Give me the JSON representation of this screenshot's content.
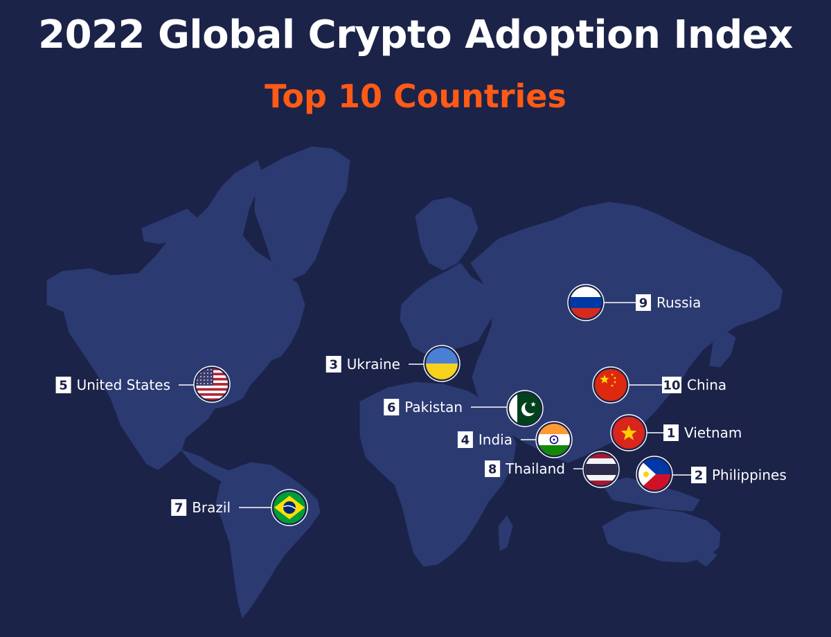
{
  "title": "2022 Global Crypto Adoption Index",
  "subtitle": "Top 10 Countries",
  "colors": {
    "background": "#1b2349",
    "land": "#2c3a72",
    "accent": "#ff5a16",
    "label": "#ffffff"
  },
  "countries": [
    {
      "rank": "1",
      "name": "Vietnam",
      "flag": "vietnam-flag-icon"
    },
    {
      "rank": "2",
      "name": "Philippines",
      "flag": "philippines-flag-icon"
    },
    {
      "rank": "3",
      "name": "Ukraine",
      "flag": "ukraine-flag-icon"
    },
    {
      "rank": "4",
      "name": "India",
      "flag": "india-flag-icon"
    },
    {
      "rank": "5",
      "name": "United States",
      "flag": "usa-flag-icon"
    },
    {
      "rank": "6",
      "name": "Pakistan",
      "flag": "pakistan-flag-icon"
    },
    {
      "rank": "7",
      "name": "Brazil",
      "flag": "brazil-flag-icon"
    },
    {
      "rank": "8",
      "name": "Thailand",
      "flag": "thailand-flag-icon"
    },
    {
      "rank": "9",
      "name": "Russia",
      "flag": "russia-flag-icon"
    },
    {
      "rank": "10",
      "name": "China",
      "flag": "china-flag-icon"
    }
  ]
}
